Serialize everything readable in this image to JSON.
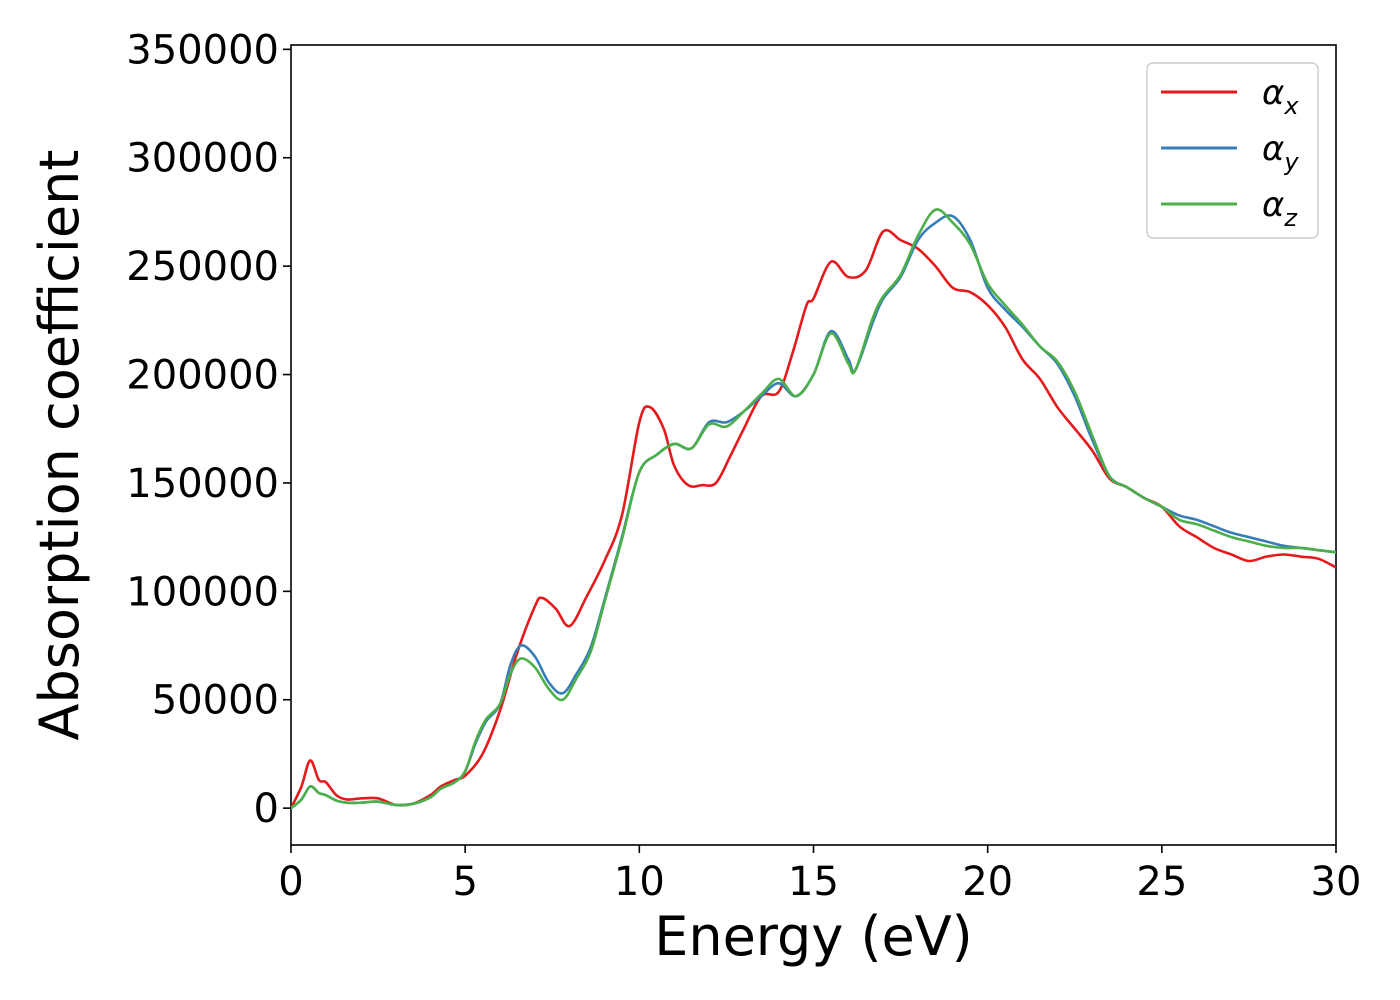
{
  "chart_data": {
    "type": "line",
    "xlabel": "Energy (eV)",
    "ylabel": "Absorption coefficient",
    "xlim": [
      0,
      30
    ],
    "ylim": [
      -17000,
      352000
    ],
    "x_ticks": [
      "0",
      "5",
      "10",
      "15",
      "20",
      "25",
      "30"
    ],
    "y_ticks": [
      "0",
      "50000",
      "100000",
      "150000",
      "200000",
      "250000",
      "300000",
      "350000"
    ],
    "grid": false,
    "legend_position": "top-right",
    "series": [
      {
        "name": "α_x",
        "label_base": "α",
        "label_sub": "x",
        "color": "#e41a1c",
        "x": [
          0,
          0.3,
          0.55,
          0.8,
          1.0,
          1.3,
          1.6,
          2.0,
          2.5,
          3.0,
          3.5,
          4.0,
          4.3,
          4.7,
          5.0,
          5.5,
          6.0,
          6.5,
          7.0,
          7.2,
          7.6,
          8.0,
          8.5,
          9.0,
          9.5,
          10.0,
          10.3,
          10.7,
          11.0,
          11.4,
          11.8,
          12.2,
          12.6,
          13.0,
          13.5,
          14.0,
          14.4,
          14.8,
          15.0,
          15.5,
          16.0,
          16.5,
          17.0,
          17.5,
          18.0,
          18.5,
          19.0,
          19.5,
          20.0,
          20.5,
          21.0,
          21.5,
          22.0,
          22.5,
          23.0,
          23.5,
          24.0,
          24.5,
          25.0,
          25.5,
          26.0,
          26.5,
          27.0,
          27.5,
          28.0,
          28.5,
          29.0,
          29.5,
          30.0
        ],
        "y": [
          0,
          10000,
          22000,
          13000,
          12000,
          6000,
          4000,
          4500,
          4500,
          1500,
          2000,
          6000,
          10000,
          13000,
          15000,
          25000,
          45000,
          72000,
          93000,
          97000,
          92000,
          84000,
          98000,
          114000,
          135000,
          178000,
          185000,
          175000,
          158000,
          149000,
          149000,
          150000,
          162000,
          175000,
          190000,
          192000,
          210000,
          232000,
          235000,
          252000,
          245000,
          248000,
          266000,
          262000,
          258000,
          250000,
          240000,
          238000,
          232000,
          222000,
          207000,
          198000,
          185000,
          175000,
          165000,
          152000,
          148000,
          143000,
          139000,
          130000,
          125000,
          120000,
          117000,
          114000,
          116000,
          117000,
          116000,
          115000,
          111000
        ]
      },
      {
        "name": "α_y",
        "label_base": "α",
        "label_sub": "y",
        "color": "#377eb8",
        "x": [
          0,
          0.3,
          0.55,
          0.8,
          1.0,
          1.3,
          1.6,
          2.0,
          2.5,
          3.0,
          3.5,
          4.0,
          4.3,
          4.7,
          5.0,
          5.3,
          5.6,
          6.0,
          6.3,
          6.6,
          7.0,
          7.4,
          7.8,
          8.2,
          8.6,
          9.0,
          9.5,
          10.0,
          10.5,
          11.0,
          11.5,
          12.0,
          12.5,
          13.0,
          13.5,
          14.0,
          14.5,
          15.0,
          15.5,
          16.0,
          16.2,
          16.7,
          17.0,
          17.5,
          18.0,
          18.5,
          19.0,
          19.5,
          20.0,
          20.5,
          21.0,
          21.5,
          22.0,
          22.5,
          23.0,
          23.5,
          24.0,
          24.5,
          25.0,
          25.5,
          26.0,
          26.5,
          27.0,
          27.5,
          28.0,
          28.5,
          29.0,
          29.5,
          30.0
        ],
        "y": [
          0,
          4000,
          10000,
          7000,
          6000,
          3500,
          2500,
          2500,
          3000,
          1500,
          2000,
          5000,
          9000,
          12000,
          17000,
          30000,
          40000,
          48000,
          66000,
          75000,
          70000,
          58000,
          53000,
          62000,
          74000,
          96000,
          125000,
          155000,
          163000,
          168000,
          166000,
          178000,
          178000,
          183000,
          190000,
          196000,
          190000,
          200000,
          220000,
          207000,
          202000,
          224000,
          235000,
          245000,
          262000,
          270000,
          273000,
          262000,
          240000,
          230000,
          222000,
          213000,
          205000,
          190000,
          170000,
          153000,
          148000,
          143000,
          139000,
          135000,
          133000,
          130000,
          127000,
          125000,
          123000,
          121000,
          120000,
          119000,
          118000
        ]
      },
      {
        "name": "α_z",
        "label_base": "α",
        "label_sub": "z",
        "color": "#4daf4a",
        "x": [
          0,
          0.3,
          0.55,
          0.8,
          1.0,
          1.3,
          1.6,
          2.0,
          2.5,
          3.0,
          3.5,
          4.0,
          4.3,
          4.7,
          5.0,
          5.3,
          5.6,
          6.0,
          6.3,
          6.6,
          7.0,
          7.4,
          7.8,
          8.2,
          8.6,
          9.0,
          9.5,
          10.0,
          10.5,
          11.0,
          11.5,
          12.0,
          12.5,
          13.0,
          13.5,
          14.0,
          14.5,
          15.0,
          15.5,
          16.0,
          16.2,
          16.7,
          17.0,
          17.5,
          18.0,
          18.5,
          19.0,
          19.5,
          20.0,
          20.5,
          21.0,
          21.5,
          22.0,
          22.5,
          23.0,
          23.5,
          24.0,
          24.5,
          25.0,
          25.5,
          26.0,
          26.5,
          27.0,
          27.5,
          28.0,
          28.5,
          29.0,
          29.5,
          30.0
        ],
        "y": [
          0,
          4000,
          10000,
          7000,
          6000,
          3500,
          2500,
          2500,
          3000,
          1500,
          2000,
          5000,
          9000,
          12000,
          17000,
          31000,
          41000,
          48000,
          62000,
          69000,
          65000,
          55000,
          50000,
          60000,
          72000,
          95000,
          124000,
          155000,
          163000,
          168000,
          166000,
          177000,
          176000,
          183000,
          191000,
          198000,
          190000,
          200000,
          219000,
          205000,
          202000,
          226000,
          236000,
          246000,
          264000,
          276000,
          270000,
          260000,
          242000,
          232000,
          223000,
          213000,
          206000,
          192000,
          172000,
          153000,
          148000,
          143000,
          139000,
          133000,
          131000,
          128000,
          125000,
          123000,
          121000,
          120000,
          120000,
          119000,
          118000
        ]
      }
    ]
  }
}
